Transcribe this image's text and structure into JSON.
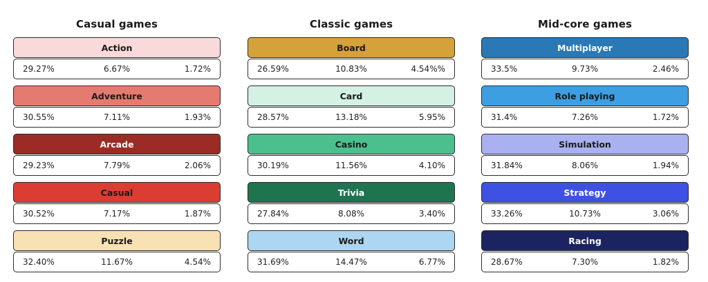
{
  "chart_data": {
    "type": "table",
    "groups": [
      {
        "title": "Casual games",
        "items": [
          {
            "name": "Action",
            "color": "#f9d9d9",
            "text_color": "#1a1a1a",
            "values": [
              "29.27%",
              "6.67%",
              "1.72%"
            ]
          },
          {
            "name": "Adventure",
            "color": "#e57a70",
            "text_color": "#1a1a1a",
            "values": [
              "30.55%",
              "7.11%",
              "1.93%"
            ]
          },
          {
            "name": "Arcade",
            "color": "#9b2b25",
            "text_color": "#ffffff",
            "values": [
              "29.23%",
              "7.79%",
              "2.06%"
            ]
          },
          {
            "name": "Casual",
            "color": "#dc3d32",
            "text_color": "#1a1a1a",
            "values": [
              "30.52%",
              "7.17%",
              "1.87%"
            ]
          },
          {
            "name": "Puzzle",
            "color": "#f8e1b3",
            "text_color": "#1a1a1a",
            "values": [
              "32.40%",
              "11.67%",
              "4.54%"
            ]
          }
        ]
      },
      {
        "title": "Classic games",
        "items": [
          {
            "name": "Board",
            "color": "#d5a23a",
            "text_color": "#1a1a1a",
            "values": [
              "26.59%",
              "10.83%",
              "4.54%%"
            ]
          },
          {
            "name": "Card",
            "color": "#d4f1e3",
            "text_color": "#1a1a1a",
            "values": [
              "28.57%",
              "13.18%",
              "5.95%"
            ]
          },
          {
            "name": "Casino",
            "color": "#4bbf8e",
            "text_color": "#1a1a1a",
            "values": [
              "30.19%",
              "11.56%",
              "4.10%"
            ]
          },
          {
            "name": "Trivia",
            "color": "#1e7350",
            "text_color": "#ffffff",
            "values": [
              "27.84%",
              "8.08%",
              "3.40%"
            ]
          },
          {
            "name": "Word",
            "color": "#acd6f1",
            "text_color": "#1a1a1a",
            "values": [
              "31.69%",
              "14.47%",
              "6.77%"
            ]
          }
        ]
      },
      {
        "title": "Mid-core games",
        "items": [
          {
            "name": "Multiplayer",
            "color": "#2a78b5",
            "text_color": "#ffffff",
            "values": [
              "33.5%",
              "9.73%",
              "2.46%"
            ]
          },
          {
            "name": "Role playing",
            "color": "#3d9ee2",
            "text_color": "#1a1a1a",
            "values": [
              "31.4%",
              "7.26%",
              "1.72%"
            ]
          },
          {
            "name": "Simulation",
            "color": "#aab1f0",
            "text_color": "#1a1a1a",
            "values": [
              "31.84%",
              "8.06%",
              "1.94%"
            ]
          },
          {
            "name": "Strategy",
            "color": "#3f51e3",
            "text_color": "#ffffff",
            "values": [
              "33.26%",
              "10.73%",
              "3.06%"
            ]
          },
          {
            "name": "Racing",
            "color": "#1b2460",
            "text_color": "#ffffff",
            "values": [
              "28.67%",
              "7.30%",
              "1.82%"
            ]
          }
        ]
      }
    ]
  }
}
